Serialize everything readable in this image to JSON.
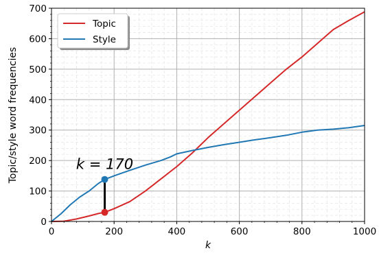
{
  "chart_data": {
    "type": "line",
    "xlabel": "k",
    "ylabel": "Topic/style word frequencies",
    "xlim": [
      0,
      1000
    ],
    "ylim": [
      0,
      700
    ],
    "x_ticks": [
      0,
      200,
      400,
      600,
      800,
      1000
    ],
    "y_ticks": [
      0,
      100,
      200,
      300,
      400,
      500,
      600,
      700
    ],
    "grid": true,
    "legend_position": "top-left",
    "series": [
      {
        "name": "Topic",
        "color": "#d62728",
        "x": [
          0,
          40,
          80,
          120,
          150,
          170,
          200,
          250,
          300,
          350,
          400,
          450,
          500,
          550,
          600,
          650,
          700,
          750,
          800,
          850,
          900,
          950,
          1000
        ],
        "y": [
          0,
          1,
          8,
          18,
          26,
          30,
          42,
          65,
          100,
          140,
          180,
          225,
          275,
          320,
          365,
          410,
          455,
          500,
          540,
          585,
          630,
          660,
          688
        ]
      },
      {
        "name": "Style",
        "color": "#1f77b4",
        "x": [
          0,
          30,
          60,
          90,
          120,
          150,
          170,
          200,
          250,
          300,
          350,
          380,
          400,
          450,
          500,
          550,
          600,
          650,
          700,
          750,
          800,
          850,
          900,
          950,
          1000
        ],
        "y": [
          0,
          25,
          55,
          80,
          100,
          125,
          138,
          150,
          168,
          185,
          200,
          212,
          222,
          233,
          243,
          252,
          260,
          268,
          275,
          283,
          293,
          300,
          303,
          308,
          315
        ]
      }
    ],
    "annotation": {
      "text": "k = 170",
      "text_x": 170,
      "text_y": 190,
      "marker_x": 170,
      "marker_top": 138,
      "marker_bottom": 30
    }
  }
}
